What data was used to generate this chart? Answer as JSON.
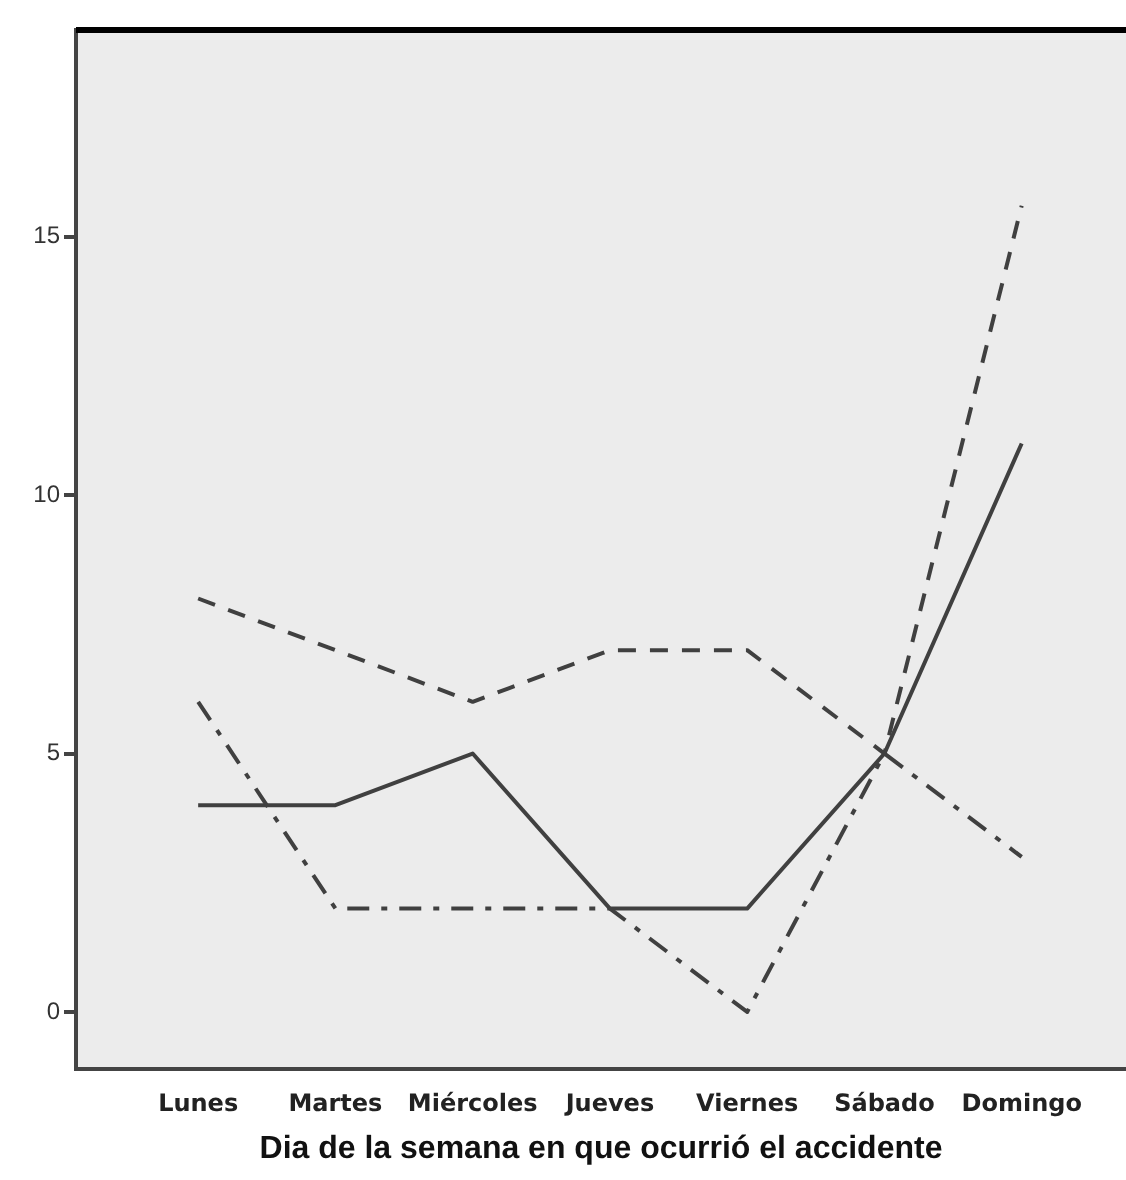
{
  "chart_data": {
    "type": "line",
    "xlabel": "Dia de la semana en que ocurrió el accidente",
    "categories": [
      "Lunes",
      "Martes",
      "Miércoles",
      "Jueves",
      "Viernes",
      "Sábado",
      "Domingo"
    ],
    "series": [
      {
        "color": "#404040",
        "line_style": "solid",
        "values": [
          4,
          4,
          5,
          2,
          2,
          5,
          11
        ]
      },
      {
        "color": "#404040",
        "line_style": "dashed",
        "values": [
          8,
          7,
          6,
          7,
          7,
          5,
          15.6
        ]
      },
      {
        "color": "#404040",
        "line_style": "dashdot",
        "values": [
          6,
          2,
          2,
          2,
          0,
          5,
          3
        ]
      }
    ],
    "ylim": [
      -1.1,
      19
    ],
    "yticks": [
      0,
      5,
      10,
      15
    ],
    "grid": false,
    "legend": false,
    "marker": "none"
  }
}
